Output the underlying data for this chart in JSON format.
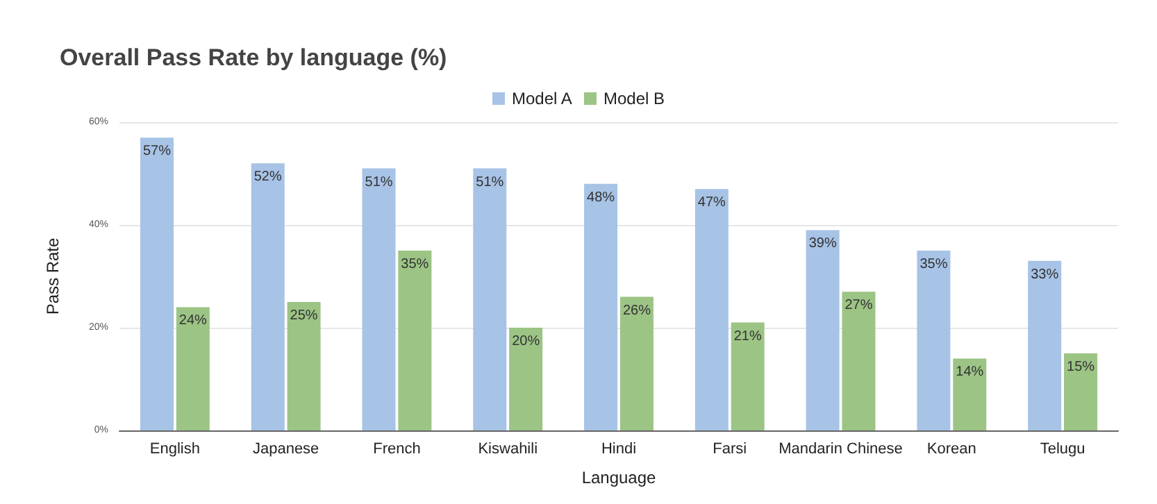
{
  "chart_data": {
    "type": "bar",
    "title": "Overall Pass Rate by language (%)",
    "xlabel": "Language",
    "ylabel": "Pass Rate",
    "categories": [
      "English",
      "Japanese",
      "French",
      "Kiswahili",
      "Hindi",
      "Farsi",
      "Mandarin Chinese",
      "Korean",
      "Telugu"
    ],
    "series": [
      {
        "name": "Model A",
        "color": "#a7c3e6",
        "values": [
          57,
          52,
          51,
          51,
          48,
          47,
          39,
          35,
          33
        ],
        "value_labels": [
          "57%",
          "52%",
          "51%",
          "51%",
          "48%",
          "47%",
          "39%",
          "35%",
          "33%"
        ]
      },
      {
        "name": "Model B",
        "color": "#9cc485",
        "values": [
          24,
          25,
          35,
          20,
          26,
          21,
          27,
          14,
          15
        ],
        "value_labels": [
          "24%",
          "25%",
          "35%",
          "20%",
          "26%",
          "21%",
          "27%",
          "14%",
          "15%"
        ]
      }
    ],
    "ylim": [
      0,
      60
    ],
    "yticks": [
      {
        "value": 0,
        "label": "0%"
      },
      {
        "value": 20,
        "label": "20%"
      },
      {
        "value": 40,
        "label": "40%"
      },
      {
        "value": 60,
        "label": "60%"
      }
    ],
    "grid": "y",
    "legend": "top"
  }
}
